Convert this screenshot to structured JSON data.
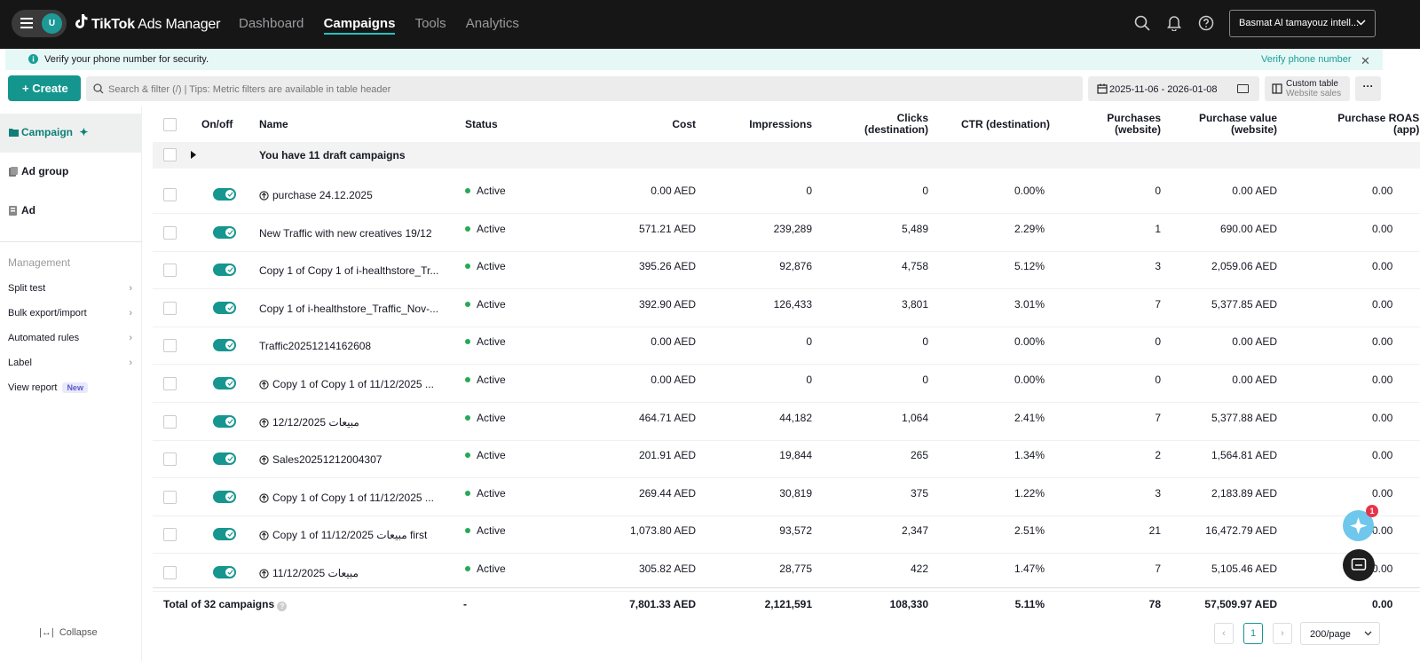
{
  "topbar": {
    "avatar_letter": "U",
    "logo_tiktok": "TikTok",
    "logo_rest": " Ads Manager",
    "nav": [
      {
        "label": "Dashboard",
        "active": false
      },
      {
        "label": "Campaigns",
        "active": true
      },
      {
        "label": "Tools",
        "active": false
      },
      {
        "label": "Analytics",
        "active": false
      }
    ],
    "account": "Basmat Al tamayouz intell..."
  },
  "banner": {
    "message": "Verify your phone number for security.",
    "action": "Verify phone number",
    "close": "✕"
  },
  "toolbar": {
    "create_label": "Create",
    "search_placeholder": "Search & filter (/) | Tips: Metric filters are available in table header",
    "date_range": "2025-11-06 - 2026-01-08",
    "custom_table_label": "Custom table",
    "custom_table_sub": "Website sales",
    "more_label": "···"
  },
  "sidebar": {
    "levels": [
      {
        "label": "Campaign",
        "active": true
      },
      {
        "label": "Ad group",
        "active": false
      },
      {
        "label": "Ad",
        "active": false
      }
    ],
    "management_title": "Management",
    "links": [
      {
        "label": "Split test",
        "chevron": "›"
      },
      {
        "label": "Bulk export/import",
        "chevron": "›"
      },
      {
        "label": "Automated rules",
        "chevron": "›"
      },
      {
        "label": "Label",
        "chevron": "›"
      },
      {
        "label": "View report",
        "badge": "New"
      }
    ],
    "collapse_label": "Collapse"
  },
  "table": {
    "columns": {
      "onoff": "On/off",
      "name": "Name",
      "status": "Status",
      "cost": "Cost",
      "impressions": "Impressions",
      "clicks1": "Clicks",
      "clicks2": "(destination)",
      "ctr": "CTR (destination)",
      "purch1": "Purchases",
      "purch2": "(website)",
      "pv1": "Purchase value",
      "pv2": "(website)",
      "roas1": "Purchase ROAS",
      "roas2": "(app)"
    },
    "draft_text": "You have 11 draft campaigns",
    "rows": [
      {
        "icon": true,
        "name": "purchase 24.12.2025",
        "status": "Active",
        "cost": "0.00 AED",
        "impressions": "0",
        "clicks": "0",
        "ctr": "0.00%",
        "purchases": "0",
        "value": "0.00 AED",
        "roas": "0.00"
      },
      {
        "icon": false,
        "name": "New Traffic with new creatives 19/12",
        "status": "Active",
        "cost": "571.21 AED",
        "impressions": "239,289",
        "clicks": "5,489",
        "ctr": "2.29%",
        "purchases": "1",
        "value": "690.00 AED",
        "roas": "0.00"
      },
      {
        "icon": false,
        "name": "Copy 1 of Copy 1 of i-healthstore_Tr...",
        "status": "Active",
        "cost": "395.26 AED",
        "impressions": "92,876",
        "clicks": "4,758",
        "ctr": "5.12%",
        "purchases": "3",
        "value": "2,059.06 AED",
        "roas": "0.00"
      },
      {
        "icon": false,
        "name": "Copy 1 of i-healthstore_Traffic_Nov-...",
        "status": "Active",
        "cost": "392.90 AED",
        "impressions": "126,433",
        "clicks": "3,801",
        "ctr": "3.01%",
        "purchases": "7",
        "value": "5,377.85 AED",
        "roas": "0.00"
      },
      {
        "icon": false,
        "name": "Traffic20251214162608",
        "status": "Active",
        "cost": "0.00 AED",
        "impressions": "0",
        "clicks": "0",
        "ctr": "0.00%",
        "purchases": "0",
        "value": "0.00 AED",
        "roas": "0.00"
      },
      {
        "icon": true,
        "name": "Copy 1 of Copy 1 of 11/12/2025 ...",
        "status": "Active",
        "cost": "0.00 AED",
        "impressions": "0",
        "clicks": "0",
        "ctr": "0.00%",
        "purchases": "0",
        "value": "0.00 AED",
        "roas": "0.00"
      },
      {
        "icon": true,
        "name": "مبيعات 12/12/2025",
        "status": "Active",
        "cost": "464.71 AED",
        "impressions": "44,182",
        "clicks": "1,064",
        "ctr": "2.41%",
        "purchases": "7",
        "value": "5,377.88 AED",
        "roas": "0.00"
      },
      {
        "icon": true,
        "name": "Sales20251212004307",
        "status": "Active",
        "cost": "201.91 AED",
        "impressions": "19,844",
        "clicks": "265",
        "ctr": "1.34%",
        "purchases": "2",
        "value": "1,564.81 AED",
        "roas": "0.00"
      },
      {
        "icon": true,
        "name": "Copy 1 of Copy 1 of 11/12/2025 ...",
        "status": "Active",
        "cost": "269.44 AED",
        "impressions": "30,819",
        "clicks": "375",
        "ctr": "1.22%",
        "purchases": "3",
        "value": "2,183.89 AED",
        "roas": "0.00"
      },
      {
        "icon": true,
        "name": "Copy 1 of 11/12/2025 مبيعات first",
        "status": "Active",
        "cost": "1,073.80 AED",
        "impressions": "93,572",
        "clicks": "2,347",
        "ctr": "2.51%",
        "purchases": "21",
        "value": "16,472.79 AED",
        "roas": "0.00"
      },
      {
        "icon": true,
        "name": "مبيعات 11/12/2025",
        "status": "Active",
        "cost": "305.82 AED",
        "impressions": "28,775",
        "clicks": "422",
        "ctr": "1.47%",
        "purchases": "7",
        "value": "5,105.46 AED",
        "roas": "0.00"
      }
    ],
    "total": {
      "label": "Total of 32 campaigns",
      "status": "-",
      "cost": "7,801.33 AED",
      "impressions": "2,121,591",
      "clicks": "108,330",
      "ctr": "5.11%",
      "purchases": "78",
      "value": "57,509.97 AED",
      "roas": "0.00"
    }
  },
  "pagination": {
    "prev": "‹",
    "current": "1",
    "next": "›",
    "per_page": "200/page"
  },
  "assistant_badge": "1",
  "colors": {
    "accent": "#14968f",
    "active_dot": "#27a855",
    "topbar": "#161616"
  }
}
